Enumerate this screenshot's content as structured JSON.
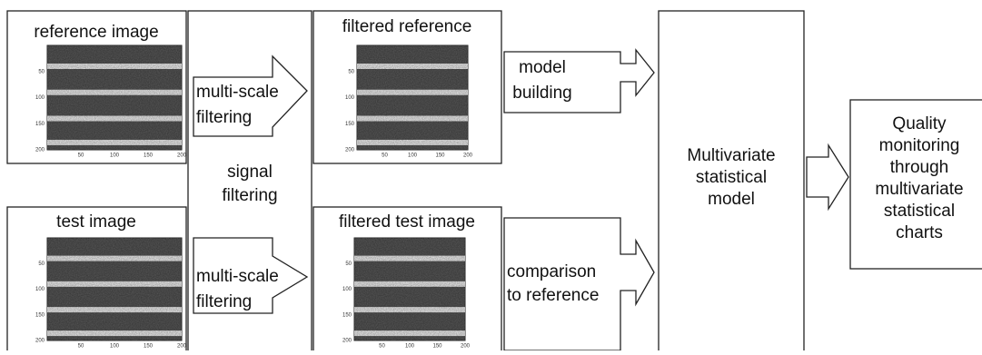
{
  "reference_image": {
    "title": "reference image",
    "xticks": [
      "50",
      "100",
      "150",
      "200"
    ],
    "yticks": [
      "50",
      "100",
      "150",
      "200"
    ]
  },
  "test_image": {
    "title": "test image",
    "xticks": [
      "50",
      "100",
      "150",
      "200"
    ],
    "yticks": [
      "50",
      "100",
      "150",
      "200"
    ]
  },
  "signal_filtering": {
    "lines": [
      "signal",
      "filtering"
    ],
    "top_arrow": [
      "multi-scale",
      "filtering"
    ],
    "bottom_arrow": [
      "multi-scale",
      "filtering"
    ]
  },
  "filtered_reference": {
    "title": "filtered reference",
    "xticks": [
      "50",
      "100",
      "150",
      "200"
    ],
    "yticks": [
      "50",
      "100",
      "150",
      "200"
    ]
  },
  "filtered_test_image": {
    "title": "filtered test image",
    "xticks": [
      "50",
      "100",
      "150",
      "200"
    ],
    "yticks": [
      "50",
      "100",
      "150",
      "200"
    ]
  },
  "model_building": [
    "model",
    "building"
  ],
  "comparison": [
    "comparison",
    "to  reference"
  ],
  "model": [
    "Multivariate",
    "statistical",
    "model"
  ],
  "quality": [
    "Quality",
    "monitoring",
    "through",
    "multivariate",
    "statistical",
    "charts"
  ]
}
